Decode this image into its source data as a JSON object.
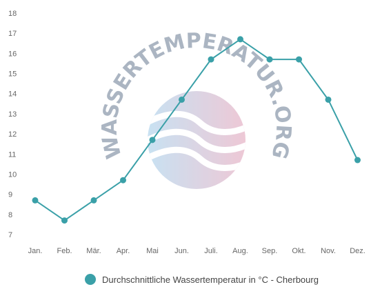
{
  "watermark": {
    "text": "WASSERTEMPERATUR.ORG"
  },
  "colors": {
    "series": "#3aa0a8",
    "tick_text": "#666666"
  },
  "chart_data": {
    "type": "line",
    "categories": [
      "Jan.",
      "Feb.",
      "Mär.",
      "Apr.",
      "Mai",
      "Jun.",
      "Juli.",
      "Aug.",
      "Sep.",
      "Okt.",
      "Nov.",
      "Dez."
    ],
    "yticks": [
      "7",
      "8",
      "9",
      "10",
      "11",
      "12",
      "13",
      "14",
      "15",
      "16",
      "17",
      "18"
    ],
    "ylim": [
      7,
      18
    ],
    "grid": false,
    "legend_position": "bottom-center",
    "series": [
      {
        "name": "Durchschnittliche Wassertemperatur in °C - Cherbourg",
        "values": [
          8.7,
          7.7,
          8.7,
          9.7,
          11.7,
          13.7,
          15.7,
          16.7,
          15.7,
          15.7,
          13.7,
          10.7
        ]
      }
    ]
  }
}
